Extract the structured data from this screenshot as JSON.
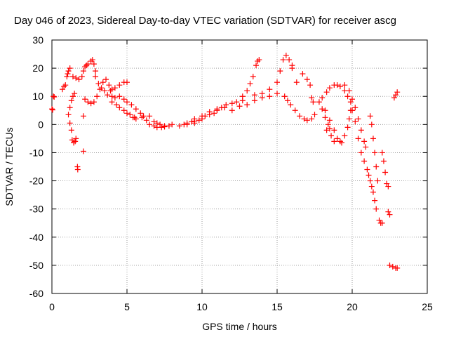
{
  "chart_data": {
    "type": "scatter",
    "title": "Day 046 of 2023, Sidereal Day-to-day VTEC variation (SDTVAR) for receiver ascg",
    "xlabel": "GPS time / hours",
    "ylabel": "SDTVAR / TECUs",
    "xlim": [
      0,
      25
    ],
    "ylim": [
      -60,
      30
    ],
    "xticks": [
      0,
      5,
      10,
      15,
      20,
      25
    ],
    "yticks": [
      -60,
      -50,
      -40,
      -30,
      -20,
      -10,
      0,
      10,
      20,
      30
    ],
    "grid": true,
    "marker": "+",
    "color": "#ff0000",
    "series": [
      {
        "name": "SDTVAR",
        "points": [
          [
            0.0,
            5.5
          ],
          [
            0.05,
            5.2
          ],
          [
            0.1,
            10
          ],
          [
            0.15,
            9.8
          ],
          [
            0.7,
            12.5
          ],
          [
            0.8,
            13.5
          ],
          [
            0.9,
            14
          ],
          [
            1.0,
            17
          ],
          [
            1.05,
            18
          ],
          [
            1.1,
            19
          ],
          [
            1.2,
            20
          ],
          [
            1.1,
            3.5
          ],
          [
            1.2,
            6
          ],
          [
            1.3,
            8.5
          ],
          [
            1.4,
            10
          ],
          [
            1.5,
            11
          ],
          [
            1.2,
            0.5
          ],
          [
            1.3,
            -2
          ],
          [
            1.35,
            -5.5
          ],
          [
            1.45,
            -6.5
          ],
          [
            1.55,
            -6
          ],
          [
            1.6,
            -5
          ],
          [
            1.7,
            -15
          ],
          [
            1.72,
            -16
          ],
          [
            2.1,
            -9.5
          ],
          [
            2.1,
            3
          ],
          [
            1.4,
            17
          ],
          [
            1.6,
            16.5
          ],
          [
            1.8,
            16
          ],
          [
            2.0,
            17
          ],
          [
            2.1,
            19
          ],
          [
            2.2,
            20.5
          ],
          [
            2.3,
            21
          ],
          [
            2.4,
            21.5
          ],
          [
            2.6,
            22.5
          ],
          [
            2.7,
            23
          ],
          [
            2.8,
            21.5
          ],
          [
            2.9,
            19
          ],
          [
            2.2,
            9
          ],
          [
            2.4,
            8
          ],
          [
            2.6,
            7.5
          ],
          [
            2.8,
            8
          ],
          [
            3.0,
            10
          ],
          [
            3.2,
            12.5
          ],
          [
            3.4,
            15
          ],
          [
            3.6,
            16
          ],
          [
            3.8,
            14
          ],
          [
            4.0,
            12.5
          ],
          [
            2.9,
            17
          ],
          [
            3.1,
            14.5
          ],
          [
            3.3,
            13
          ],
          [
            3.5,
            12
          ],
          [
            3.7,
            10.5
          ],
          [
            4.0,
            10
          ],
          [
            4.2,
            9.5
          ],
          [
            3.9,
            12
          ],
          [
            4.2,
            13
          ],
          [
            4.5,
            14
          ],
          [
            4.8,
            15
          ],
          [
            5.0,
            15
          ],
          [
            4.0,
            8
          ],
          [
            4.3,
            7
          ],
          [
            4.5,
            6
          ],
          [
            4.8,
            5
          ],
          [
            5.0,
            4
          ],
          [
            5.2,
            3.5
          ],
          [
            5.4,
            2.5
          ],
          [
            5.6,
            2
          ],
          [
            4.5,
            10
          ],
          [
            4.8,
            9
          ],
          [
            5.0,
            8
          ],
          [
            5.3,
            7
          ],
          [
            5.6,
            5.5
          ],
          [
            5.9,
            4
          ],
          [
            6.1,
            3
          ],
          [
            5.5,
            2.5
          ],
          [
            6.0,
            2.5
          ],
          [
            6.3,
            1.5
          ],
          [
            6.5,
            3
          ],
          [
            6.8,
            1
          ],
          [
            7.0,
            0.5
          ],
          [
            7.2,
            0
          ],
          [
            7.5,
            -0.5
          ],
          [
            7.8,
            -0.5
          ],
          [
            6.5,
            0
          ],
          [
            6.8,
            -0.5
          ],
          [
            7.0,
            -1
          ],
          [
            7.3,
            -1
          ],
          [
            7.5,
            -0.8
          ],
          [
            8.0,
            0
          ],
          [
            8.5,
            -0.5
          ],
          [
            8.8,
            0
          ],
          [
            9.0,
            0.5
          ],
          [
            9.3,
            1
          ],
          [
            9.5,
            1.2
          ],
          [
            9.8,
            1.5
          ],
          [
            9.0,
            0
          ],
          [
            9.5,
            0.5
          ],
          [
            10.0,
            2
          ],
          [
            10.2,
            3
          ],
          [
            10.5,
            3.5
          ],
          [
            10.8,
            4
          ],
          [
            11.0,
            5
          ],
          [
            11.3,
            6
          ],
          [
            11.6,
            7
          ],
          [
            12.0,
            7.5
          ],
          [
            12.3,
            8
          ],
          [
            12.7,
            8.5
          ],
          [
            9.5,
            2
          ],
          [
            10.0,
            3
          ],
          [
            10.5,
            4.5
          ],
          [
            11.0,
            5.5
          ],
          [
            11.5,
            6
          ],
          [
            12.0,
            5
          ],
          [
            12.5,
            6.5
          ],
          [
            13.0,
            7
          ],
          [
            13.5,
            8.5
          ],
          [
            14.0,
            9.5
          ],
          [
            14.5,
            10
          ],
          [
            15.0,
            11
          ],
          [
            12.7,
            10
          ],
          [
            13.0,
            12
          ],
          [
            13.2,
            14.5
          ],
          [
            13.4,
            17
          ],
          [
            13.6,
            21
          ],
          [
            13.7,
            22.5
          ],
          [
            13.8,
            23
          ],
          [
            13.5,
            10.5
          ],
          [
            14.0,
            11
          ],
          [
            14.5,
            12.5
          ],
          [
            15.0,
            15
          ],
          [
            15.2,
            19
          ],
          [
            15.4,
            23
          ],
          [
            15.6,
            24.5
          ],
          [
            15.8,
            23
          ],
          [
            16.0,
            21
          ],
          [
            15.5,
            10
          ],
          [
            15.7,
            8.5
          ],
          [
            15.9,
            7
          ],
          [
            16.2,
            5
          ],
          [
            16.5,
            3
          ],
          [
            16.8,
            2
          ],
          [
            17.0,
            1.5
          ],
          [
            17.3,
            2
          ],
          [
            16.0,
            20
          ],
          [
            16.3,
            15
          ],
          [
            16.7,
            18
          ],
          [
            17.0,
            16
          ],
          [
            17.2,
            14
          ],
          [
            17.3,
            9.5
          ],
          [
            17.4,
            8
          ],
          [
            17.5,
            3.5
          ],
          [
            17.8,
            8
          ],
          [
            18.0,
            5.5
          ],
          [
            18.2,
            2.5
          ],
          [
            18.4,
            0
          ],
          [
            18.5,
            -1.5
          ],
          [
            18.0,
            9.5
          ],
          [
            18.3,
            11.5
          ],
          [
            18.5,
            13
          ],
          [
            18.8,
            14
          ],
          [
            19.0,
            14
          ],
          [
            19.2,
            13.5
          ],
          [
            19.5,
            12
          ],
          [
            19.7,
            10
          ],
          [
            19.9,
            8
          ],
          [
            20.0,
            5
          ],
          [
            18.2,
            5
          ],
          [
            18.5,
            1.5
          ],
          [
            18.8,
            -2
          ],
          [
            19.0,
            -5
          ],
          [
            19.2,
            -6
          ],
          [
            19.5,
            -4
          ],
          [
            19.7,
            -1
          ],
          [
            19.8,
            2
          ],
          [
            19.9,
            5
          ],
          [
            18.3,
            -2
          ],
          [
            18.6,
            -4
          ],
          [
            18.8,
            -6
          ],
          [
            19.3,
            -6.5
          ],
          [
            19.5,
            14
          ],
          [
            19.8,
            12
          ],
          [
            20.0,
            9
          ],
          [
            20.2,
            6
          ],
          [
            20.4,
            2
          ],
          [
            20.6,
            -2
          ],
          [
            20.8,
            -6
          ],
          [
            20.9,
            -8
          ],
          [
            20.0,
            5
          ],
          [
            20.2,
            1
          ],
          [
            20.4,
            -5
          ],
          [
            20.6,
            -10
          ],
          [
            20.8,
            -13
          ],
          [
            21.0,
            -16
          ],
          [
            21.1,
            -18
          ],
          [
            21.2,
            -20
          ],
          [
            21.3,
            -22
          ],
          [
            21.4,
            -24
          ],
          [
            21.5,
            -27
          ],
          [
            21.6,
            -30
          ],
          [
            21.2,
            3
          ],
          [
            21.3,
            0
          ],
          [
            21.4,
            -5
          ],
          [
            21.5,
            -10
          ],
          [
            21.6,
            -15
          ],
          [
            21.7,
            -20
          ],
          [
            21.8,
            -34
          ],
          [
            21.9,
            -35
          ],
          [
            22.0,
            -35
          ],
          [
            22.0,
            -10
          ],
          [
            22.1,
            -13
          ],
          [
            22.2,
            -17
          ],
          [
            22.3,
            -21
          ],
          [
            22.4,
            -22
          ],
          [
            22.4,
            -31
          ],
          [
            22.5,
            -32
          ],
          [
            22.5,
            -50
          ],
          [
            22.7,
            -50.5
          ],
          [
            22.9,
            -51
          ],
          [
            23.0,
            -51
          ],
          [
            22.8,
            9.5
          ],
          [
            22.9,
            10.5
          ],
          [
            23.0,
            11.5
          ]
        ]
      }
    ]
  }
}
